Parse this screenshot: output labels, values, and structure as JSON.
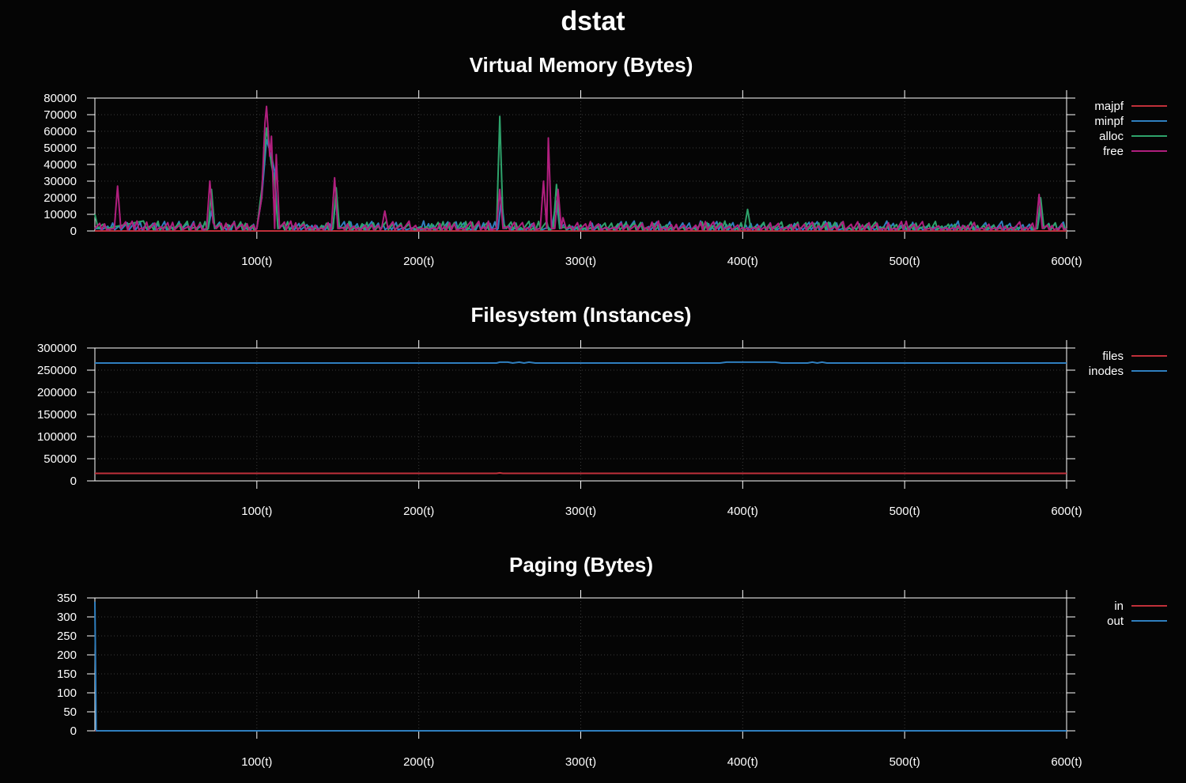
{
  "title": "dstat",
  "chart_data": [
    {
      "type": "line",
      "title": "Virtual Memory (Bytes)",
      "xlim": [
        0,
        600
      ],
      "ylim": [
        0,
        80000
      ],
      "x_ticks": [
        100,
        200,
        300,
        400,
        500,
        600
      ],
      "x_tick_labels": [
        "100(t)",
        "200(t)",
        "300(t)",
        "400(t)",
        "500(t)",
        "600(t)"
      ],
      "y_ticks": [
        0,
        10000,
        20000,
        30000,
        40000,
        50000,
        60000,
        70000,
        80000
      ],
      "y_tick_labels": [
        "0",
        "10000",
        "20000",
        "30000",
        "40000",
        "50000",
        "60000",
        "70000",
        "80000"
      ],
      "grid": true,
      "legend_position": "right",
      "baseline": 1500,
      "series": [
        {
          "name": "majpf",
          "color": "#c0303a",
          "points": [
            [
              0,
              0
            ],
            [
              600,
              0
            ]
          ]
        },
        {
          "name": "minpf",
          "color": "#2f7fbf",
          "points": [
            [
              0,
              1500
            ],
            [
              70,
              1500
            ],
            [
              72,
              12000
            ],
            [
              74,
              1500
            ],
            [
              100,
              1500
            ],
            [
              103,
              20000
            ],
            [
              106,
              55000
            ],
            [
              109,
              45000
            ],
            [
              111,
              36000
            ],
            [
              113,
              1500
            ],
            [
              147,
              1500
            ],
            [
              149,
              22000
            ],
            [
              151,
              1500
            ],
            [
              249,
              1500
            ],
            [
              251,
              20000
            ],
            [
              253,
              1500
            ],
            [
              282,
              1500
            ],
            [
              285,
              18000
            ],
            [
              287,
              1500
            ],
            [
              582,
              1500
            ],
            [
              584,
              14000
            ],
            [
              586,
              1500
            ],
            [
              600,
              1500
            ]
          ]
        },
        {
          "name": "alloc",
          "color": "#2ea36b",
          "points": [
            [
              0,
              10000
            ],
            [
              2,
              1500
            ],
            [
              5,
              4000
            ],
            [
              7,
              1500
            ],
            [
              30,
              6000
            ],
            [
              32,
              1500
            ],
            [
              70,
              1500
            ],
            [
              72,
              25000
            ],
            [
              74,
              1500
            ],
            [
              100,
              1500
            ],
            [
              103,
              25000
            ],
            [
              106,
              62000
            ],
            [
              109,
              40000
            ],
            [
              111,
              30000
            ],
            [
              113,
              1500
            ],
            [
              147,
              1500
            ],
            [
              149,
              26000
            ],
            [
              151,
              1500
            ],
            [
              248,
              1500
            ],
            [
              250,
              69000
            ],
            [
              252,
              5000
            ],
            [
              254,
              1500
            ],
            [
              283,
              1500
            ],
            [
              285,
              28000
            ],
            [
              287,
              1500
            ],
            [
              401,
              1500
            ],
            [
              403,
              13000
            ],
            [
              405,
              1500
            ],
            [
              582,
              1500
            ],
            [
              584,
              20000
            ],
            [
              586,
              1500
            ],
            [
              600,
              1500
            ]
          ]
        },
        {
          "name": "free",
          "color": "#b01f7e",
          "points": [
            [
              0,
              1500
            ],
            [
              12,
              1500
            ],
            [
              14,
              27000
            ],
            [
              16,
              1500
            ],
            [
              69,
              1500
            ],
            [
              71,
              30000
            ],
            [
              73,
              5000
            ],
            [
              75,
              1500
            ],
            [
              100,
              1500
            ],
            [
              103,
              20000
            ],
            [
              105,
              65000
            ],
            [
              106,
              75000
            ],
            [
              108,
              45000
            ],
            [
              109,
              57000
            ],
            [
              111,
              1500
            ],
            [
              112,
              46000
            ],
            [
              114,
              1500
            ],
            [
              146,
              1500
            ],
            [
              148,
              32000
            ],
            [
              150,
              1500
            ],
            [
              177,
              1500
            ],
            [
              179,
              12000
            ],
            [
              181,
              1500
            ],
            [
              248,
              1500
            ],
            [
              250,
              25000
            ],
            [
              252,
              1500
            ],
            [
              275,
              1500
            ],
            [
              277,
              30000
            ],
            [
              279,
              1500
            ],
            [
              280,
              56000
            ],
            [
              282,
              1500
            ],
            [
              284,
              1500
            ],
            [
              286,
              25000
            ],
            [
              288,
              1500
            ],
            [
              289,
              8000
            ],
            [
              291,
              1500
            ],
            [
              581,
              1500
            ],
            [
              583,
              22000
            ],
            [
              585,
              1500
            ],
            [
              600,
              1500
            ]
          ]
        }
      ]
    },
    {
      "type": "line",
      "title": "Filesystem (Instances)",
      "xlim": [
        0,
        600
      ],
      "ylim": [
        0,
        300000
      ],
      "x_ticks": [
        100,
        200,
        300,
        400,
        500,
        600
      ],
      "x_tick_labels": [
        "100(t)",
        "200(t)",
        "300(t)",
        "400(t)",
        "500(t)",
        "600(t)"
      ],
      "y_ticks": [
        0,
        50000,
        100000,
        150000,
        200000,
        250000,
        300000
      ],
      "y_tick_labels": [
        "0",
        "50000",
        "100000",
        "150000",
        "200000",
        "250000",
        "300000"
      ],
      "grid": true,
      "legend_position": "right",
      "series": [
        {
          "name": "files",
          "color": "#c0303a",
          "points": [
            [
              0,
              17000
            ],
            [
              248,
              17000
            ],
            [
              250,
              18000
            ],
            [
              252,
              17000
            ],
            [
              600,
              17000
            ]
          ]
        },
        {
          "name": "inodes",
          "color": "#2f7fbf",
          "points": [
            [
              0,
              266000
            ],
            [
              248,
              266000
            ],
            [
              250,
              268000
            ],
            [
              255,
              268000
            ],
            [
              258,
              266000
            ],
            [
              262,
              268000
            ],
            [
              265,
              266000
            ],
            [
              268,
              268000
            ],
            [
              272,
              266000
            ],
            [
              386,
              266000
            ],
            [
              390,
              268000
            ],
            [
              420,
              268000
            ],
            [
              424,
              266000
            ],
            [
              440,
              266000
            ],
            [
              443,
              268000
            ],
            [
              446,
              266000
            ],
            [
              449,
              268000
            ],
            [
              452,
              266000
            ],
            [
              600,
              266000
            ]
          ]
        }
      ]
    },
    {
      "type": "line",
      "title": "Paging (Bytes)",
      "xlim": [
        0,
        600
      ],
      "ylim": [
        0,
        350
      ],
      "x_ticks": [
        100,
        200,
        300,
        400,
        500,
        600
      ],
      "x_tick_labels": [
        "100(t)",
        "200(t)",
        "300(t)",
        "400(t)",
        "500(t)",
        "600(t)"
      ],
      "y_ticks": [
        0,
        50,
        100,
        150,
        200,
        250,
        300,
        350
      ],
      "y_tick_labels": [
        "0",
        "50",
        "100",
        "150",
        "200",
        "250",
        "300",
        "350"
      ],
      "grid": true,
      "legend_position": "right",
      "series": [
        {
          "name": "in",
          "color": "#c0303a",
          "points": [
            [
              0,
              0
            ],
            [
              600,
              0
            ]
          ]
        },
        {
          "name": "out",
          "color": "#2f7fbf",
          "points": [
            [
              0,
              340
            ],
            [
              0.8,
              0
            ],
            [
              600,
              0
            ]
          ]
        }
      ]
    }
  ]
}
